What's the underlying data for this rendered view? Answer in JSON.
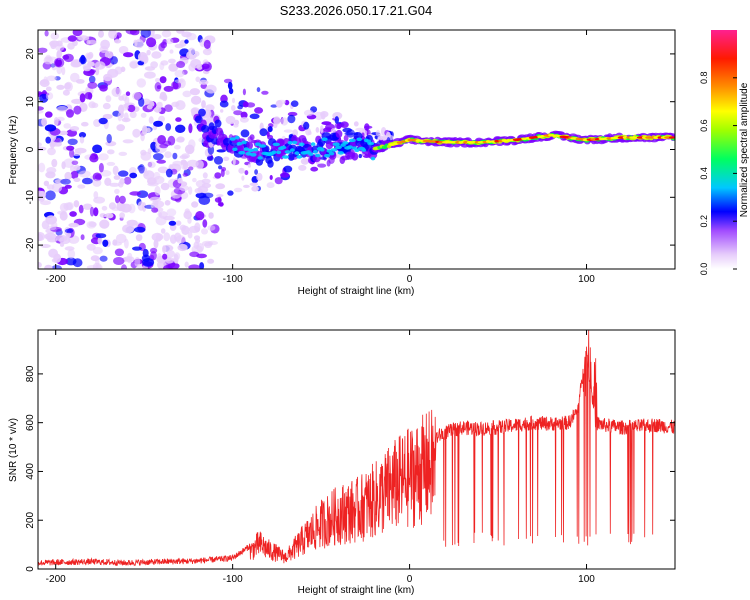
{
  "figure_title": "S233.2026.050.17.21.G04",
  "chart_data": [
    {
      "type": "heatmap",
      "title": "S233.2026.050.17.21.G04",
      "xlabel": "Height of straight line (km)",
      "ylabel": "Frequency (Hz)",
      "xlim": [
        -210,
        150
      ],
      "ylim": [
        -25,
        25
      ],
      "xticks": [
        -200,
        -100,
        0,
        100
      ],
      "yticks": [
        -20,
        -10,
        0,
        10,
        20
      ],
      "colorbar": {
        "label": "Normalized spectral amplitude",
        "range": [
          0,
          1
        ],
        "ticks": [
          "0.0",
          "0.2",
          "0.4",
          "0.6",
          "0.8"
        ],
        "colors": [
          "#e7cdfb",
          "#7a00ff",
          "#0000ff",
          "#00c8ff",
          "#00ff40",
          "#c8ff00",
          "#ffff00",
          "#ff8000",
          "#ff0000",
          "#ff2080"
        ]
      },
      "ridge": [
        {
          "x": -120,
          "y": 6
        },
        {
          "x": -100,
          "y": 2
        },
        {
          "x": -80,
          "y": -1
        },
        {
          "x": -60,
          "y": 0
        },
        {
          "x": -40,
          "y": 1
        },
        {
          "x": -20,
          "y": 0
        },
        {
          "x": 0,
          "y": 2
        },
        {
          "x": 20,
          "y": 1.5
        },
        {
          "x": 40,
          "y": 1.5
        },
        {
          "x": 60,
          "y": 2
        },
        {
          "x": 80,
          "y": 3
        },
        {
          "x": 100,
          "y": 2
        },
        {
          "x": 120,
          "y": 2.5
        },
        {
          "x": 150,
          "y": 2.5
        }
      ]
    },
    {
      "type": "line",
      "xlabel": "Height of straight line (km)",
      "ylabel": "SNR (10 * v/v)",
      "xlim": [
        -210,
        150
      ],
      "ylim": [
        0,
        980
      ],
      "xticks": [
        -200,
        -100,
        0,
        100
      ],
      "yticks": [
        0,
        200,
        400,
        600,
        800
      ],
      "series": [
        {
          "name": "SNR",
          "color": "#ee2222",
          "x": [
            -210,
            -200,
            -180,
            -160,
            -140,
            -120,
            -100,
            -90,
            -85,
            -80,
            -70,
            -60,
            -50,
            -40,
            -30,
            -20,
            -10,
            0,
            10,
            20,
            30,
            40,
            50,
            60,
            70,
            80,
            90,
            95,
            100,
            105,
            110,
            120,
            130,
            140,
            150
          ],
          "values": [
            20,
            22,
            25,
            20,
            25,
            28,
            40,
            90,
            130,
            100,
            60,
            150,
            230,
            280,
            300,
            350,
            420,
            470,
            520,
            560,
            580,
            575,
            580,
            590,
            600,
            595,
            600,
            650,
            900,
            600,
            590,
            580,
            585,
            590,
            580
          ]
        }
      ]
    }
  ]
}
